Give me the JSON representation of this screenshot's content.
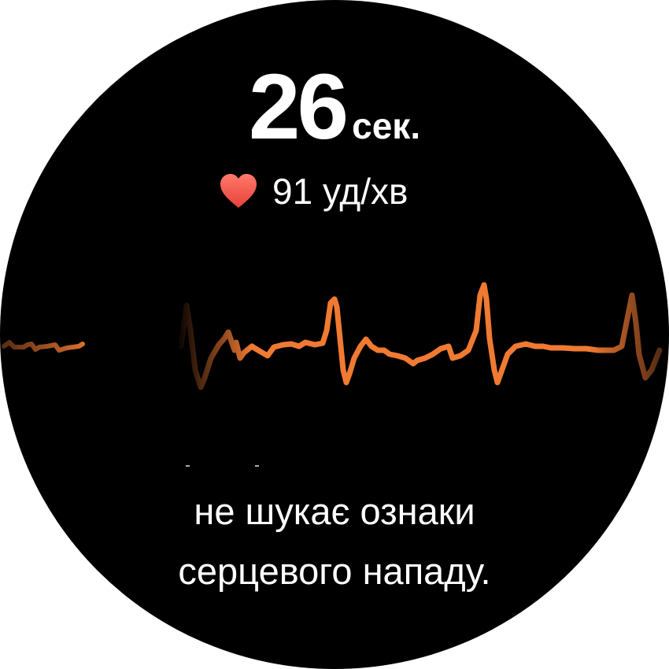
{
  "timer": {
    "value": "26",
    "unit": "сек."
  },
  "heart_rate": {
    "icon": "heart-icon",
    "text": "91 уд/хв",
    "icon_color": "#f0524a"
  },
  "ecg": {
    "color": "#f07a32"
  },
  "message": {
    "line1": "не шукає ознаки",
    "line2": "серцевого нападу."
  }
}
